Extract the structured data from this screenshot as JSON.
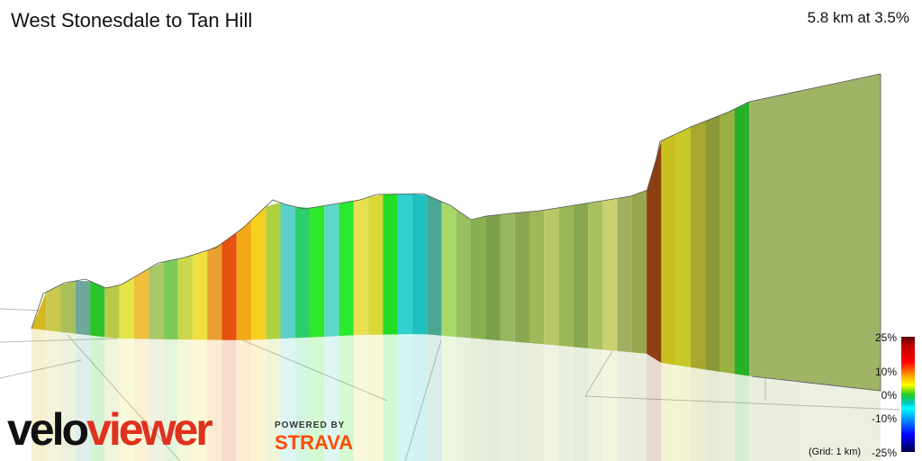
{
  "header": {
    "title": "West Stonesdale to Tan Hill",
    "summary": "5.8 km at 3.5%"
  },
  "profile": {
    "segment_colors": [
      "#d4b820",
      "#c9c84a",
      "#a9c05a",
      "#6ea89a",
      "#2ec22e",
      "#b9c94a",
      "#e6e64a",
      "#f0c03a",
      "#a9c868",
      "#7ccb5a",
      "#c9d848",
      "#f0e040",
      "#e8a030",
      "#e65010",
      "#f2a818",
      "#f7d020",
      "#b0d040",
      "#5ad0c8",
      "#2ccf6a",
      "#2ee82a",
      "#60d8c8",
      "#2be830",
      "#e8e050",
      "#d8d838",
      "#22dd22",
      "#30d0d0",
      "#20c0c0",
      "#4aa890",
      "#a8d868",
      "#98c060",
      "#88b050",
      "#7ca04a",
      "#98b860",
      "#8aa852",
      "#a0b858",
      "#b8c868",
      "#9ab858",
      "#88a850",
      "#a8c060",
      "#c8d070",
      "#a0b060",
      "#98a850",
      "#8c4012",
      "#c8c020",
      "#c8c828",
      "#a8a830",
      "#8a9838",
      "#9ab040",
      "#28b028",
      "#a0b468"
    ],
    "color_scale": {
      "top": "25%",
      "mid_high": "10%",
      "zero": "0%",
      "mid_low": "-10%",
      "bottom": "-25%"
    },
    "grid_note": "(Grid: 1 km)"
  },
  "branding": {
    "logo_part1": "velo",
    "logo_part2": "viewer",
    "powered_by": "POWERED BY",
    "strava": "STRAVA"
  }
}
